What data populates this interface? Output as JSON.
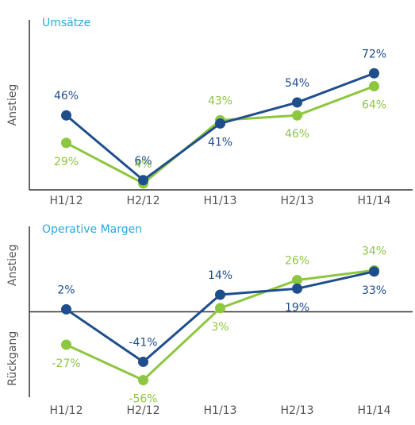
{
  "chart_data": [
    {
      "type": "line",
      "title": "Umsätze",
      "ylabel": "Anstieg",
      "categories": [
        "H1/12",
        "H2/12",
        "H1/13",
        "H2/13",
        "H1/14"
      ],
      "ylim": [
        0,
        105
      ],
      "series": [
        {
          "name": null,
          "color": "#8dc63f",
          "values": [
            29,
            4,
            43,
            46,
            64
          ],
          "value_labels": [
            "29%",
            "4%",
            "43%",
            "46%",
            "64%"
          ]
        },
        {
          "name": null,
          "color": "#1f4e8c",
          "values": [
            46,
            6,
            41,
            54,
            72
          ],
          "value_labels": [
            "46%",
            "6%",
            "41%",
            "54%",
            "72%"
          ]
        }
      ]
    },
    {
      "type": "line",
      "title": "Operative Margen",
      "ylabel_positive": "Anstieg",
      "ylabel_negative": "Rückgang",
      "categories": [
        "H1/12",
        "H2/12",
        "H1/13",
        "H2/13",
        "H1/14"
      ],
      "ylim": [
        -70,
        70
      ],
      "series": [
        {
          "name": null,
          "color": "#8dc63f",
          "values": [
            -27,
            -56,
            3,
            26,
            34
          ],
          "value_labels": [
            "-27%",
            "-56%",
            "3%",
            "26%",
            "34%"
          ]
        },
        {
          "name": null,
          "color": "#1f4e8c",
          "values": [
            2,
            -41,
            14,
            19,
            33
          ],
          "value_labels": [
            "2%",
            "-41%",
            "14%",
            "19%",
            "33%"
          ]
        }
      ]
    }
  ]
}
